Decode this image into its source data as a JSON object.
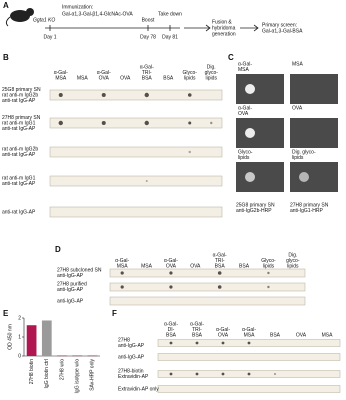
{
  "letters": [
    "A",
    "B",
    "C",
    "D",
    "E",
    "F"
  ],
  "panel_a": {
    "mouse": "Ggta1 KO",
    "immunization": "Immunization:",
    "antigen": "Gal-α1,3-Gal-β1,4-GlcNAc-OVA",
    "boost": "Boost",
    "take_down": "Take down",
    "days": [
      "Day 1",
      "Day 78",
      "Day 81"
    ],
    "fusion": [
      "Fusion &",
      "hybridoma",
      "generation"
    ],
    "screen": [
      "Primary screen:",
      "Gal-α1,3-Gal-BSA"
    ]
  },
  "panel_b": {
    "columns": [
      [
        "α-Gal-",
        "MSA"
      ],
      [
        "MSA"
      ],
      [
        "α-Gal-",
        "OVA"
      ],
      [
        "OVA"
      ],
      [
        "α-Gal-",
        "TRI-",
        "BSA"
      ],
      [
        "BSA"
      ],
      [
        "Glyco-",
        "lipids"
      ],
      [
        "Dig.",
        "glyco-",
        "lipids"
      ]
    ],
    "rows": [
      [
        "25G8 primary SN",
        "rat anti-m IgG2b",
        "anti-rat IgG-AP"
      ],
      [
        "27H8 primary SN",
        "rat anti-m IgG1",
        "anti-rat IgG-AP"
      ],
      [
        "rat anti-m IgG2b",
        "anti-rat IgG-AP"
      ],
      [
        "rat anti-m IgG1",
        "anti-rat IgG-AP"
      ],
      [
        "anti-rat IgG-AP"
      ]
    ]
  },
  "panel_c": {
    "cells": [
      [
        "α-Gal-",
        "MSA"
      ],
      [
        "MSA"
      ],
      [
        "α-Gal-",
        "OVA"
      ],
      [
        "OVA"
      ],
      [
        "Glyco-",
        "lipids"
      ],
      [
        "Dig. glyco-",
        "lipids"
      ]
    ],
    "captions": [
      [
        "25G8 primary SN",
        "anti-IgG2b-HRP"
      ],
      [
        "27H8 primary SN",
        "anti-IgG1-HRP"
      ]
    ]
  },
  "panel_d": {
    "columns": [
      [
        "α-Gal-",
        "MSA"
      ],
      [
        "MSA"
      ],
      [
        "α-Gal-",
        "OVA"
      ],
      [
        "OVA"
      ],
      [
        "α-Gal-",
        "TRI-",
        "BSA"
      ],
      [
        "BSA"
      ],
      [
        "Glyco-",
        "lipids"
      ],
      [
        "Dig.",
        "glyco-",
        "lipids"
      ]
    ],
    "rows": [
      [
        "27H8 subcloned SN",
        "anti-IgG-AP"
      ],
      [
        "27H8 purified",
        "anti-IgG-AP"
      ],
      [
        "anti-IgG-AP"
      ]
    ]
  },
  "chart_data": {
    "type": "bar",
    "y_label": "OD 450 nm",
    "categories": [
      "27H8 biotin",
      "IgG biotin ctrl",
      "27H8 w/o",
      "IgG isotype w/o",
      "SAv-HRP only"
    ],
    "values": [
      1.62,
      1.87,
      0.02,
      0.02,
      0.02
    ],
    "colors": [
      "#b0164f",
      "#9a9a9a",
      "#b0164f",
      "#b0164f",
      "#b0164f"
    ],
    "ylim": [
      0,
      2
    ],
    "yticks": [
      0,
      1,
      2
    ]
  },
  "panel_f": {
    "columns": [
      [
        "α-Gal-",
        "DI-",
        "BSA"
      ],
      [
        "α-Gal-",
        "TRI-",
        "BSA"
      ],
      [
        "α-Gal-",
        "OVA"
      ],
      [
        "α-Gal-",
        "MSA"
      ],
      [
        "BSA"
      ],
      [
        "OVA"
      ],
      [
        "MSA"
      ]
    ],
    "rows": [
      [
        "27H8",
        "anti-IgG-AP"
      ],
      [
        "anti-IgG-AP"
      ],
      [
        "27H8-biotin",
        "Extravidin-AP"
      ],
      [
        "Extravidin-AP only"
      ]
    ]
  }
}
